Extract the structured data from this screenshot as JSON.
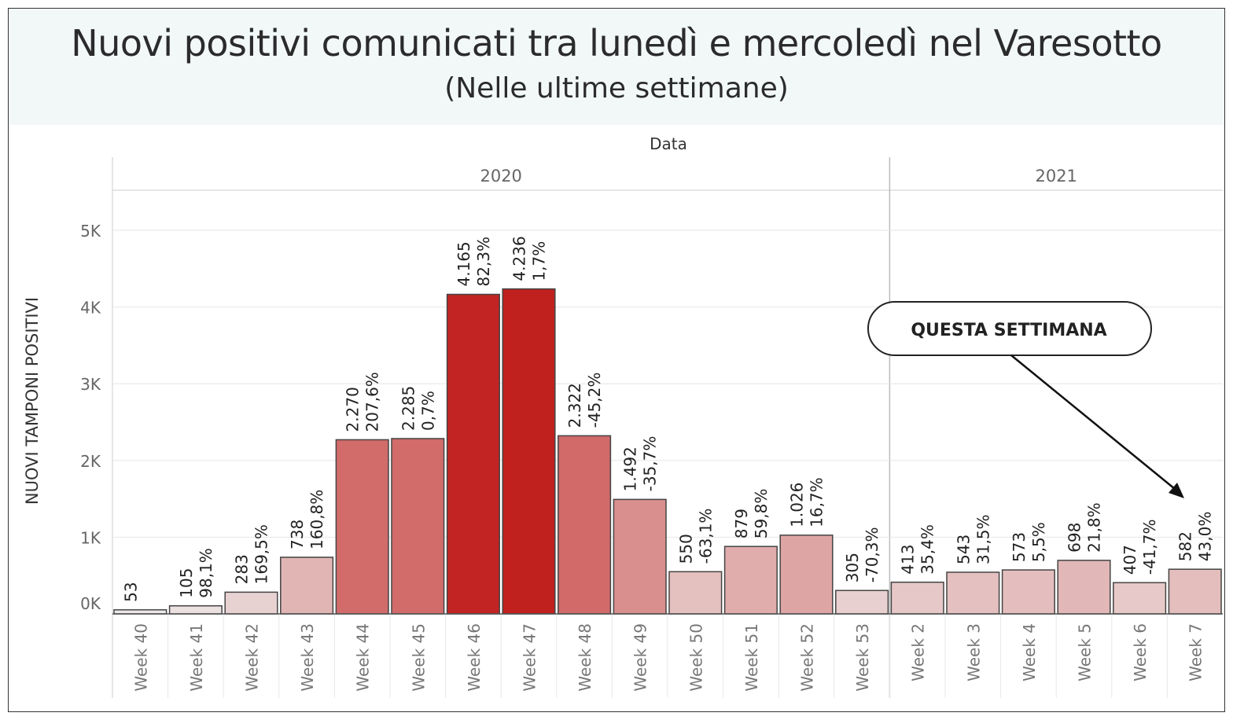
{
  "header": {
    "title": "Nuovi positivi comunicati tra lunedì e mercoledì nel Varesotto",
    "subtitle": "(Nelle ultime settimane)"
  },
  "chart_data": {
    "type": "bar",
    "top_axis_title": "Data",
    "years": [
      {
        "label": "2020",
        "span": [
          0,
          13
        ]
      },
      {
        "label": "2021",
        "span": [
          14,
          19
        ]
      }
    ],
    "categories": [
      "Week 40",
      "Week 41",
      "Week 42",
      "Week 43",
      "Week 44",
      "Week 45",
      "Week 46",
      "Week 47",
      "Week 48",
      "Week 49",
      "Week 50",
      "Week 51",
      "Week 52",
      "Week 53",
      "Week 2",
      "Week 3",
      "Week 4",
      "Week 5",
      "Week 6",
      "Week 7"
    ],
    "values": [
      53,
      105,
      283,
      738,
      2270,
      2285,
      4165,
      4236,
      2322,
      1492,
      550,
      879,
      1026,
      305,
      413,
      543,
      573,
      698,
      407,
      582
    ],
    "value_labels": [
      "53",
      "105",
      "283",
      "738",
      "2.270",
      "2.285",
      "4.165",
      "4.236",
      "2.322",
      "1.492",
      "550",
      "879",
      "1.026",
      "305",
      "413",
      "543",
      "573",
      "698",
      "407",
      "582"
    ],
    "pct_labels": [
      "",
      "98,1%",
      "169,5%",
      "160,8%",
      "207,6%",
      "0,7%",
      "82,3%",
      "1,7%",
      "-45,2%",
      "-35,7%",
      "-63,1%",
      "59,8%",
      "16,7%",
      "-70,3%",
      "35,4%",
      "31,5%",
      "5,5%",
      "21,8%",
      "-41,7%",
      "43,0%"
    ],
    "ylabel": "NUOVI TAMPONI POSITIVI",
    "ylim": [
      0,
      5200
    ],
    "yticks": [
      0,
      1000,
      2000,
      3000,
      4000,
      5000
    ],
    "ytick_labels": [
      "0K",
      "1K",
      "2K",
      "3K",
      "4K",
      "5K"
    ],
    "grid": true,
    "color_low": "#ede8e8",
    "color_high": "#c0211f",
    "bar_outline": "#444444",
    "annotation": {
      "text": "QUESTA SETTIMANA",
      "points_to": "Week 7"
    }
  }
}
